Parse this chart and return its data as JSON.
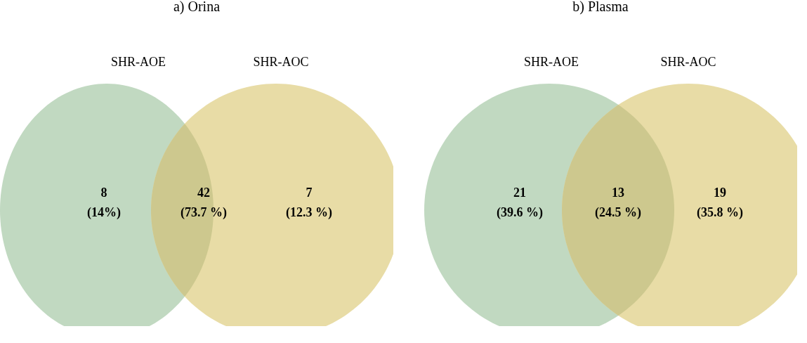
{
  "chart_data": [
    {
      "type": "other",
      "title": "a) Orina",
      "annotations": [
        "SHR-AOE",
        "SHR-AOC"
      ],
      "categories": [
        null,
        null,
        null
      ],
      "colors": [
        "#c1d9c1",
        "#cdc88e",
        "#e8dca6"
      ],
      "values": [
        8,
        42,
        7
      ],
      "value_labels": [
        "8\n(14%)",
        "42\n(73.7 %)",
        "7\n(12.3 %)"
      ]
    },
    {
      "type": "other",
      "title": "b) Plasma",
      "annotations": [
        "SHR-AOE",
        "SHR-AOC"
      ],
      "categories": [
        null,
        null,
        null
      ],
      "colors": [
        "#c1d9c1",
        "#cdc88e",
        "#e8dca6"
      ],
      "values": [
        21,
        13,
        19
      ],
      "value_labels": [
        "21\n(39.6 %)",
        "13\n(24.5 %)",
        "19\n(35.8 %)"
      ]
    }
  ]
}
